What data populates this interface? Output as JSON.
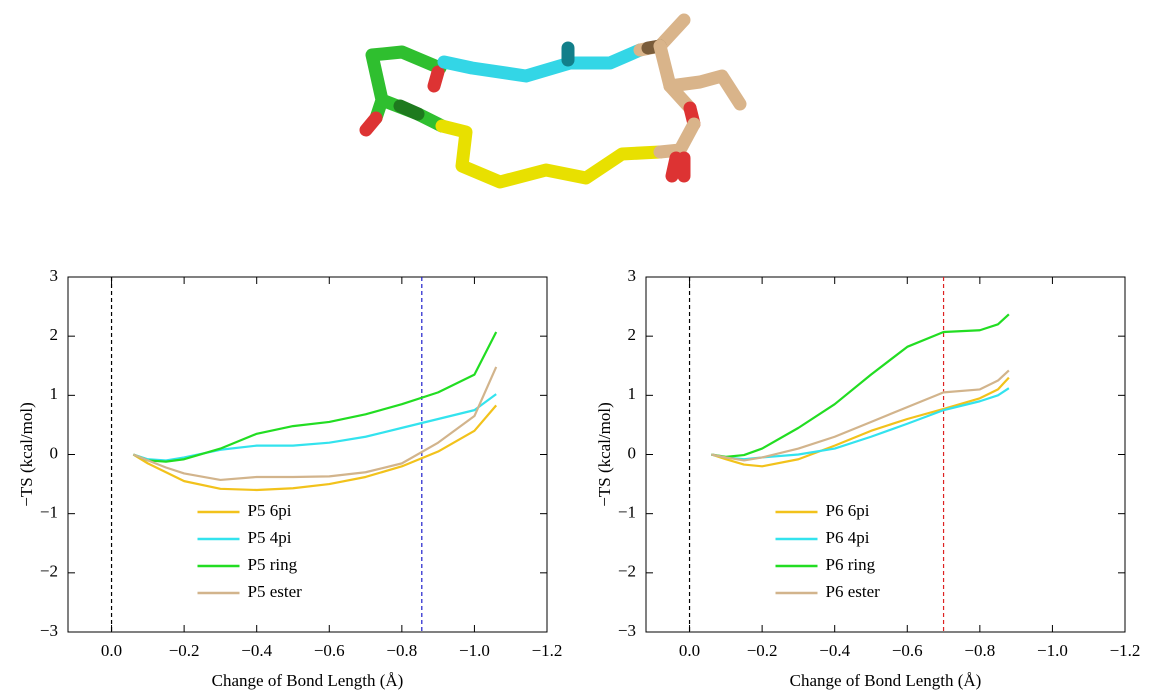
{
  "chart_data": [
    {
      "type": "line",
      "xlabel": "Change of Bond Length (Å)",
      "ylabel": "−TS (kcal/mol)",
      "xlim": [
        0.12,
        -1.2
      ],
      "ylim": [
        -3,
        3
      ],
      "xticks": [
        {
          "value": 0,
          "label": "0.0"
        },
        {
          "value": -0.2,
          "label": "−0.2"
        },
        {
          "value": -0.4,
          "label": "−0.4"
        },
        {
          "value": -0.6,
          "label": "−0.6"
        },
        {
          "value": -0.8,
          "label": "−0.8"
        },
        {
          "value": -1.0,
          "label": "−1.0"
        },
        {
          "value": -1.2,
          "label": "−1.2"
        }
      ],
      "yticks": [
        {
          "value": -3,
          "label": "−3"
        },
        {
          "value": -2,
          "label": "−2"
        },
        {
          "value": -1,
          "label": "−1"
        },
        0,
        1,
        2,
        3
      ],
      "legend": "lower center",
      "vlines": [
        {
          "x": 0,
          "color": "#000000"
        },
        {
          "x": -0.855,
          "color": "#1f1fcc"
        }
      ],
      "x": [
        -0.06,
        -0.1,
        -0.15,
        -0.2,
        -0.3,
        -0.4,
        -0.5,
        -0.6,
        -0.7,
        -0.8,
        -0.9,
        -1.0,
        -1.06
      ],
      "series": [
        {
          "name": "P5 6pi",
          "color": "#f2c21b",
          "values": [
            0,
            -0.15,
            -0.3,
            -0.45,
            -0.58,
            -0.6,
            -0.57,
            -0.5,
            -0.38,
            -0.2,
            0.05,
            0.4,
            0.83
          ]
        },
        {
          "name": "P5 4pi",
          "color": "#33e3ee",
          "values": [
            0,
            -0.08,
            -0.1,
            -0.05,
            0.08,
            0.15,
            0.15,
            0.2,
            0.3,
            0.45,
            0.6,
            0.75,
            1.02
          ]
        },
        {
          "name": "P5 ring",
          "color": "#22dd22",
          "values": [
            0,
            -0.1,
            -0.12,
            -0.08,
            0.1,
            0.35,
            0.48,
            0.55,
            0.68,
            0.85,
            1.05,
            1.35,
            2.07
          ]
        },
        {
          "name": "P5 ester",
          "color": "#d2b48c",
          "values": [
            0,
            -0.1,
            -0.22,
            -0.32,
            -0.43,
            -0.38,
            -0.38,
            -0.37,
            -0.3,
            -0.15,
            0.2,
            0.65,
            1.48
          ]
        }
      ]
    },
    {
      "type": "line",
      "xlabel": "Change of Bond Length (Å)",
      "ylabel": "−TS (kcal/mol)",
      "xlim": [
        0.12,
        -1.2
      ],
      "ylim": [
        -3,
        3
      ],
      "xticks": [
        {
          "value": 0,
          "label": "0.0"
        },
        {
          "value": -0.2,
          "label": "−0.2"
        },
        {
          "value": -0.4,
          "label": "−0.4"
        },
        {
          "value": -0.6,
          "label": "−0.6"
        },
        {
          "value": -0.8,
          "label": "−0.8"
        },
        {
          "value": -1.0,
          "label": "−1.0"
        },
        {
          "value": -1.2,
          "label": "−1.2"
        }
      ],
      "yticks": [
        {
          "value": -3,
          "label": "−3"
        },
        {
          "value": -2,
          "label": "−2"
        },
        {
          "value": -1,
          "label": "−1"
        },
        0,
        1,
        2,
        3
      ],
      "legend": "lower center",
      "vlines": [
        {
          "x": 0,
          "color": "#000000"
        },
        {
          "x": -0.7,
          "color": "#dd2222"
        }
      ],
      "x": [
        -0.06,
        -0.1,
        -0.15,
        -0.2,
        -0.3,
        -0.4,
        -0.5,
        -0.6,
        -0.7,
        -0.8,
        -0.85,
        -0.88
      ],
      "series": [
        {
          "name": "P6 6pi",
          "color": "#f2c21b",
          "values": [
            0,
            -0.08,
            -0.17,
            -0.2,
            -0.08,
            0.15,
            0.4,
            0.6,
            0.77,
            0.95,
            1.1,
            1.3
          ]
        },
        {
          "name": "P6 4pi",
          "color": "#33e3ee",
          "values": [
            0,
            -0.05,
            -0.08,
            -0.05,
            0.0,
            0.1,
            0.3,
            0.52,
            0.75,
            0.9,
            1.0,
            1.12
          ]
        },
        {
          "name": "P6 ring",
          "color": "#22dd22",
          "values": [
            0,
            -0.04,
            -0.01,
            0.1,
            0.45,
            0.85,
            1.35,
            1.82,
            2.07,
            2.1,
            2.2,
            2.37
          ]
        },
        {
          "name": "P6 ester",
          "color": "#d2b48c",
          "values": [
            0,
            -0.05,
            -0.1,
            -0.05,
            0.1,
            0.3,
            0.55,
            0.8,
            1.05,
            1.1,
            1.25,
            1.42
          ]
        }
      ]
    }
  ]
}
